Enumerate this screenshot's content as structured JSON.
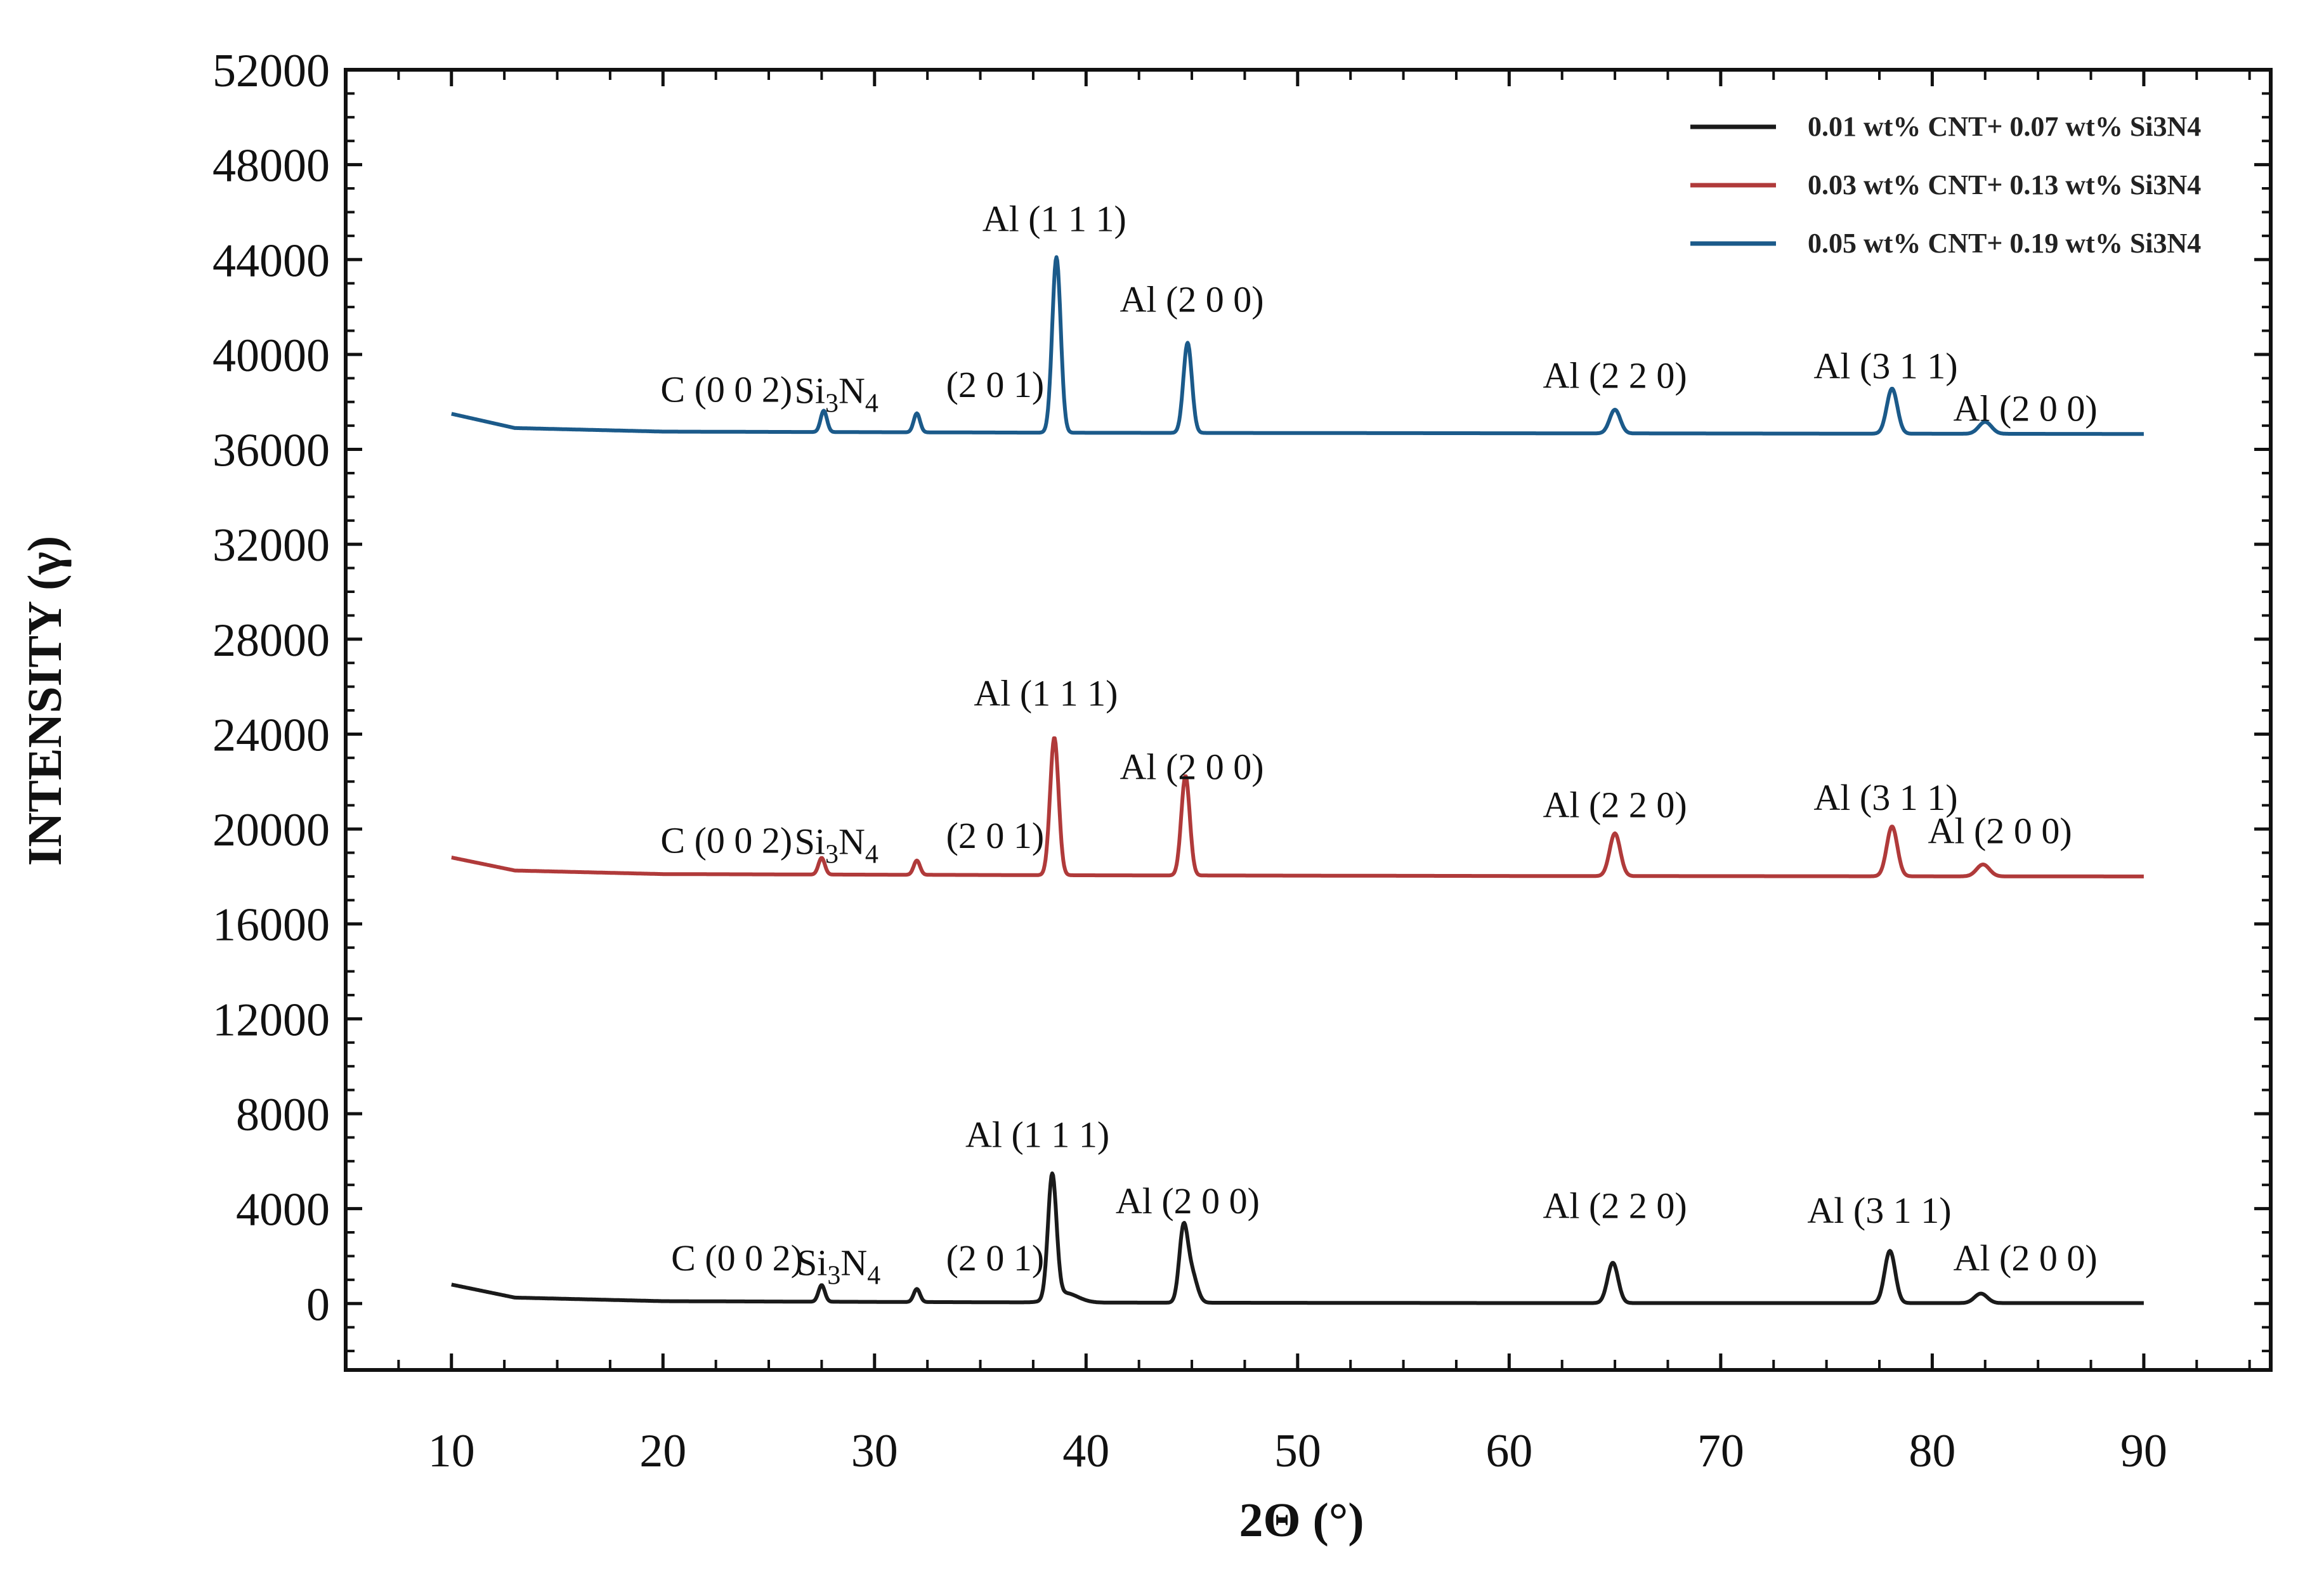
{
  "chart_data": {
    "type": "line",
    "title": "",
    "xlabel": "2Θ (°)",
    "ylabel": "INTENSITY (γ)",
    "xlim": [
      5,
      96
    ],
    "ylim": [
      -2800,
      52000
    ],
    "x_ticks": [
      "10",
      "20",
      "30",
      "40",
      "50",
      "60",
      "70",
      "80",
      "90"
    ],
    "y_ticks": [
      "0",
      "4000",
      "8000",
      "12000",
      "16000",
      "20000",
      "24000",
      "28000",
      "32000",
      "36000",
      "40000",
      "44000",
      "48000",
      "52000"
    ],
    "legend_position": "top-right",
    "grid": false,
    "series": [
      {
        "name": "0.01 wt% CNT+ 0.07 wt% Si3N4",
        "color": "#1a1a1a",
        "baseline": [
          [
            10,
            800
          ],
          [
            13,
            250
          ],
          [
            20,
            100
          ],
          [
            40,
            40
          ],
          [
            60,
            20
          ],
          [
            90,
            20
          ]
        ],
        "peaks": [
          [
            27.5,
            700,
            0.15
          ],
          [
            32,
            550,
            0.15
          ],
          [
            38.4,
            5200,
            0.2
          ],
          [
            39,
            400,
            0.6
          ],
          [
            44.6,
            3000,
            0.2
          ],
          [
            45,
            1200,
            0.25
          ],
          [
            64.9,
            1700,
            0.25
          ],
          [
            78,
            2200,
            0.25
          ],
          [
            82.3,
            400,
            0.3
          ]
        ]
      },
      {
        "name": "0.03 wt% CNT+ 0.13 wt% Si3N4",
        "color": "#b03a3a",
        "baseline": [
          [
            10,
            18800
          ],
          [
            13,
            18250
          ],
          [
            20,
            18100
          ],
          [
            40,
            18050
          ],
          [
            60,
            18020
          ],
          [
            90,
            18000
          ]
        ],
        "peaks": [
          [
            27.5,
            700,
            0.15
          ],
          [
            32,
            600,
            0.15
          ],
          [
            38.5,
            5800,
            0.2
          ],
          [
            44.7,
            4200,
            0.2
          ],
          [
            65,
            1800,
            0.25
          ],
          [
            78.1,
            2100,
            0.25
          ],
          [
            82.4,
            500,
            0.3
          ]
        ]
      },
      {
        "name": "0.05 wt% CNT+ 0.19 wt% Si3N4",
        "color": "#1b5a8a",
        "baseline": [
          [
            10,
            37500
          ],
          [
            13,
            36900
          ],
          [
            20,
            36750
          ],
          [
            40,
            36700
          ],
          [
            60,
            36680
          ],
          [
            90,
            36650
          ]
        ],
        "peaks": [
          [
            27.6,
            900,
            0.15
          ],
          [
            32,
            800,
            0.15
          ],
          [
            38.6,
            7400,
            0.2
          ],
          [
            44.8,
            3800,
            0.2
          ],
          [
            65,
            1000,
            0.25
          ],
          [
            78.1,
            1900,
            0.25
          ],
          [
            82.5,
            500,
            0.3
          ]
        ]
      }
    ],
    "annotations": [
      {
        "text": "Al (1 1  1)",
        "x": 38.5,
        "y": 45200
      },
      {
        "text": "Al (2 0 0)",
        "x": 45,
        "y": 41800
      },
      {
        "text": "C (0 0 2)",
        "x": 23,
        "y": 38000
      },
      {
        "text": "(2 0 1)",
        "x": 35.7,
        "y": 38200
      },
      {
        "text": "Al (2 2 0)",
        "x": 65,
        "y": 38600
      },
      {
        "text": "Al (3 1 1)",
        "x": 77.8,
        "y": 39000
      },
      {
        "text": "Al (2 0 0)",
        "x": 84.4,
        "y": 37200
      },
      {
        "text": "Al (1 1  1)",
        "x": 38.1,
        "y": 25200
      },
      {
        "text": "Al (2 0 0)",
        "x": 45,
        "y": 22100
      },
      {
        "text": "C (0 0 2)",
        "x": 23,
        "y": 19000
      },
      {
        "text": "(2 0 1)",
        "x": 35.7,
        "y": 19200
      },
      {
        "text": "Al (2 2 0)",
        "x": 65,
        "y": 20500
      },
      {
        "text": "Al (3 1 1)",
        "x": 77.8,
        "y": 20800
      },
      {
        "text": "Al (2 0 0)",
        "x": 83.2,
        "y": 19400
      },
      {
        "text": "Al (1 1  1)",
        "x": 37.7,
        "y": 6600
      },
      {
        "text": "Al (2 0 0)",
        "x": 44.8,
        "y": 3800
      },
      {
        "text": "C (0 0 2)",
        "x": 23.5,
        "y": 1400
      },
      {
        "text": "(2 0 1)",
        "x": 35.7,
        "y": 1400
      },
      {
        "text": "Al (2 2 0)",
        "x": 65,
        "y": 3600
      },
      {
        "text": "Al (3 1 1)",
        "x": 77.5,
        "y": 3400
      },
      {
        "text": "Al (2 0 0)",
        "x": 84.4,
        "y": 1400
      }
    ],
    "si3n4_labels": [
      {
        "x": 28.2,
        "y": 37950
      },
      {
        "x": 28.2,
        "y": 18950
      },
      {
        "x": 28.3,
        "y": 1200
      }
    ],
    "si3n4_text": {
      "si": "Si",
      "sub3": "3",
      "n": "N",
      "sub4": "4"
    }
  }
}
